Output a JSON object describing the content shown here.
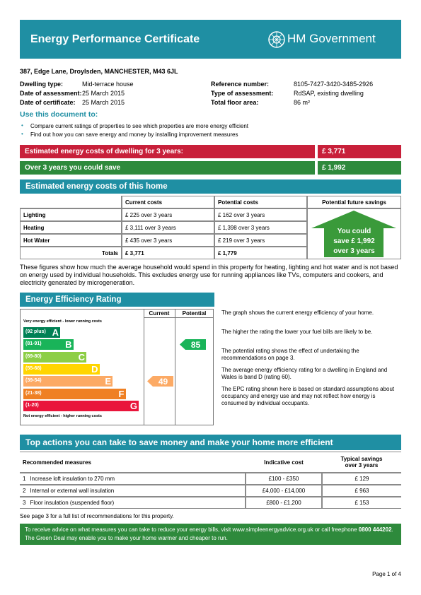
{
  "header": {
    "title": "Energy Performance Certificate",
    "logo": "HM Government"
  },
  "address": "387, Edge Lane, Droylsden, MANCHESTER, M43 6JL",
  "details": [
    {
      "label": "Dwelling type:",
      "value": "Mid-terrace house"
    },
    {
      "label": "Date of assessment:",
      "value": "25   March   2015"
    },
    {
      "label": "Date of certificate:",
      "value": "25   March   2015"
    },
    {
      "label": "Reference number:",
      "value": "8105-7427-3420-3485-2926"
    },
    {
      "label": "Type of assessment:",
      "value": "RdSAP, existing dwelling"
    },
    {
      "label": "Total floor area:",
      "value": "86 m²"
    }
  ],
  "use_heading": "Use this document to:",
  "bullets": [
    "Compare current ratings of properties to see which properties are more energy efficient",
    "Find out how you can save energy and money by installing improvement measures"
  ],
  "summary": [
    {
      "label": "Estimated energy costs of dwelling for 3 years:",
      "value": "£ 3,771",
      "color": "#c8203a"
    },
    {
      "label": "Over 3 years you could save",
      "value": "£ 1,992",
      "color": "#2e8a3c"
    }
  ],
  "costs": {
    "heading": "Estimated energy costs of this home",
    "columns": [
      "Current costs",
      "Potential costs",
      "Potential future savings"
    ],
    "rows": [
      [
        "Lighting",
        "£ 225 over 3 years",
        "£ 162 over 3 years"
      ],
      [
        "Heating",
        "£ 3,111 over 3 years",
        "£ 1,398 over 3 years"
      ],
      [
        "Hot Water",
        "£ 435 over 3 years",
        "£ 219 over 3 years"
      ]
    ],
    "totals": [
      "Totals",
      "£ 3,771",
      "£ 1,779"
    ],
    "savings": [
      "You could",
      "save £ 1,992",
      "over 3 years"
    ]
  },
  "costs_note": "These figures show how much the average household would spend in this property for heating, lighting and hot water and is not based on energy used by individual households. This excludes energy use for running appliances like TVs, computers and cookers, and electricity generated by microgeneration.",
  "rating": {
    "heading": "Energy Efficiency Rating",
    "columns": [
      "Current",
      "Potential"
    ],
    "top_note": "Very energy efficient - lower running costs",
    "bottom_note": "Not energy efficient - higher running costs",
    "bands": [
      {
        "range": "(92 plus)",
        "letter": "A",
        "color": "#008054"
      },
      {
        "range": "(81-91)",
        "letter": "B",
        "color": "#19b459"
      },
      {
        "range": "(69-80)",
        "letter": "C",
        "color": "#8dce46"
      },
      {
        "range": "(55-68)",
        "letter": "D",
        "color": "#ffd500"
      },
      {
        "range": "(39-54)",
        "letter": "E",
        "color": "#fcaa65"
      },
      {
        "range": "(21-38)",
        "letter": "F",
        "color": "#ef8023"
      },
      {
        "range": "(1-20)",
        "letter": "G",
        "color": "#e9153b"
      }
    ],
    "current": 49,
    "potential": 85,
    "paragraphs": [
      "The graph shows the current energy efficiency of your home.",
      "The higher the rating the lower your fuel bills are likely to be.",
      "The potential rating shows the effect of undertaking the recommendations on page 3.",
      "The average energy efficiency rating for a dwelling in England and Wales is band D (rating 60).",
      "The EPC rating shown here is based on standard assumptions about occupancy and energy use and may not reflect how energy is consumed by individual occupants."
    ]
  },
  "actions": {
    "heading": "Top actions you can take to save money and make your home more efficient",
    "columns": [
      "Recommended measures",
      "Indicative cost",
      "Typical savings over 3 years"
    ],
    "rows": [
      [
        "1",
        "Increase loft insulation to 270 mm",
        "£100 - £350",
        "£ 129"
      ],
      [
        "2",
        "Internal or external wall insulation",
        "£4,000 - £14,000",
        "£ 963"
      ],
      [
        "3",
        "Floor insulation (suspended floor)",
        "£800 - £1,200",
        "£ 153"
      ]
    ]
  },
  "footnote": "See page 3 for a full list of recommendations for this property.",
  "advice": {
    "text1": "To receive advice on what measures you can take to reduce your energy bills, visit www.simpleenergyadvice.org.uk or call freephone ",
    "phone": "0800 444202",
    "text2": ". The Green Deal may enable you to make your home warmer and cheaper to run."
  },
  "footer": "Page 1 of 4"
}
